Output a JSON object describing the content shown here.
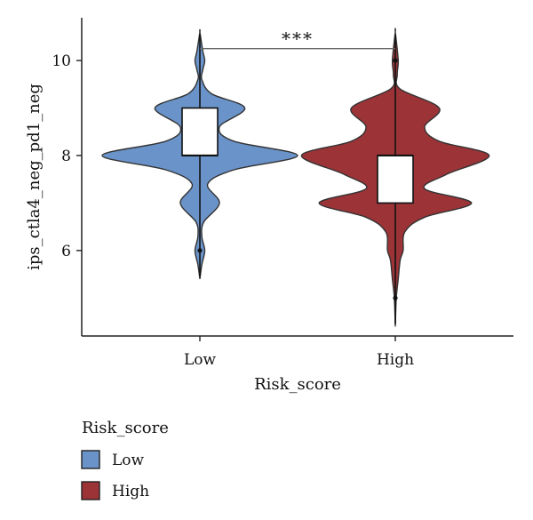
{
  "chart_data": {
    "type": "violin",
    "xlabel": "Risk_score",
    "ylabel": "ips_ctla4_neg_pd1_neg",
    "categories": [
      "Low",
      "High"
    ],
    "ylim": [
      4.2,
      10.9
    ],
    "yticks": [
      6,
      8,
      10
    ],
    "grid": false,
    "colors": {
      "Low": "#6a93c9",
      "High": "#9b3337"
    },
    "series": [
      {
        "name": "Low",
        "min": 5.4,
        "max": 10.6,
        "box": {
          "q1": 8.0,
          "median": 8.0,
          "q3": 9.0
        },
        "whisker": [
          7.0,
          10.0
        ],
        "outliers": [
          6.0
        ],
        "density": [
          [
            5.4,
            0.0
          ],
          [
            5.7,
            0.02
          ],
          [
            6.0,
            0.05
          ],
          [
            6.3,
            0.02
          ],
          [
            6.6,
            0.04
          ],
          [
            7.0,
            0.2
          ],
          [
            7.4,
            0.08
          ],
          [
            7.7,
            0.35
          ],
          [
            8.0,
            1.0
          ],
          [
            8.3,
            0.35
          ],
          [
            8.6,
            0.2
          ],
          [
            9.0,
            0.46
          ],
          [
            9.3,
            0.12
          ],
          [
            9.6,
            0.02
          ],
          [
            9.8,
            0.03
          ],
          [
            10.0,
            0.05
          ],
          [
            10.2,
            0.03
          ],
          [
            10.6,
            0.0
          ]
        ]
      },
      {
        "name": "High",
        "min": 4.4,
        "max": 10.6,
        "box": {
          "q1": 7.0,
          "median": 8.0,
          "q3": 8.0
        },
        "whisker": [
          6.0,
          9.0
        ],
        "outliers": [
          5.0,
          10.0
        ],
        "density": [
          [
            4.4,
            0.0
          ],
          [
            5.0,
            0.01
          ],
          [
            5.4,
            0.03
          ],
          [
            5.8,
            0.05
          ],
          [
            6.0,
            0.08
          ],
          [
            6.4,
            0.1
          ],
          [
            6.7,
            0.3
          ],
          [
            7.0,
            0.78
          ],
          [
            7.3,
            0.3
          ],
          [
            7.6,
            0.52
          ],
          [
            8.0,
            0.96
          ],
          [
            8.3,
            0.45
          ],
          [
            8.6,
            0.3
          ],
          [
            9.0,
            0.45
          ],
          [
            9.4,
            0.05
          ],
          [
            9.7,
            0.02
          ],
          [
            10.0,
            0.03
          ],
          [
            10.6,
            0.0
          ]
        ]
      }
    ],
    "significance": {
      "label": "***",
      "y": 10.25,
      "pair": [
        "Low",
        "High"
      ]
    },
    "legend": {
      "title": "Risk_score",
      "position": "bottom-left",
      "items": [
        {
          "label": "Low",
          "color": "#6a93c9"
        },
        {
          "label": "High",
          "color": "#9b3337"
        }
      ]
    }
  }
}
